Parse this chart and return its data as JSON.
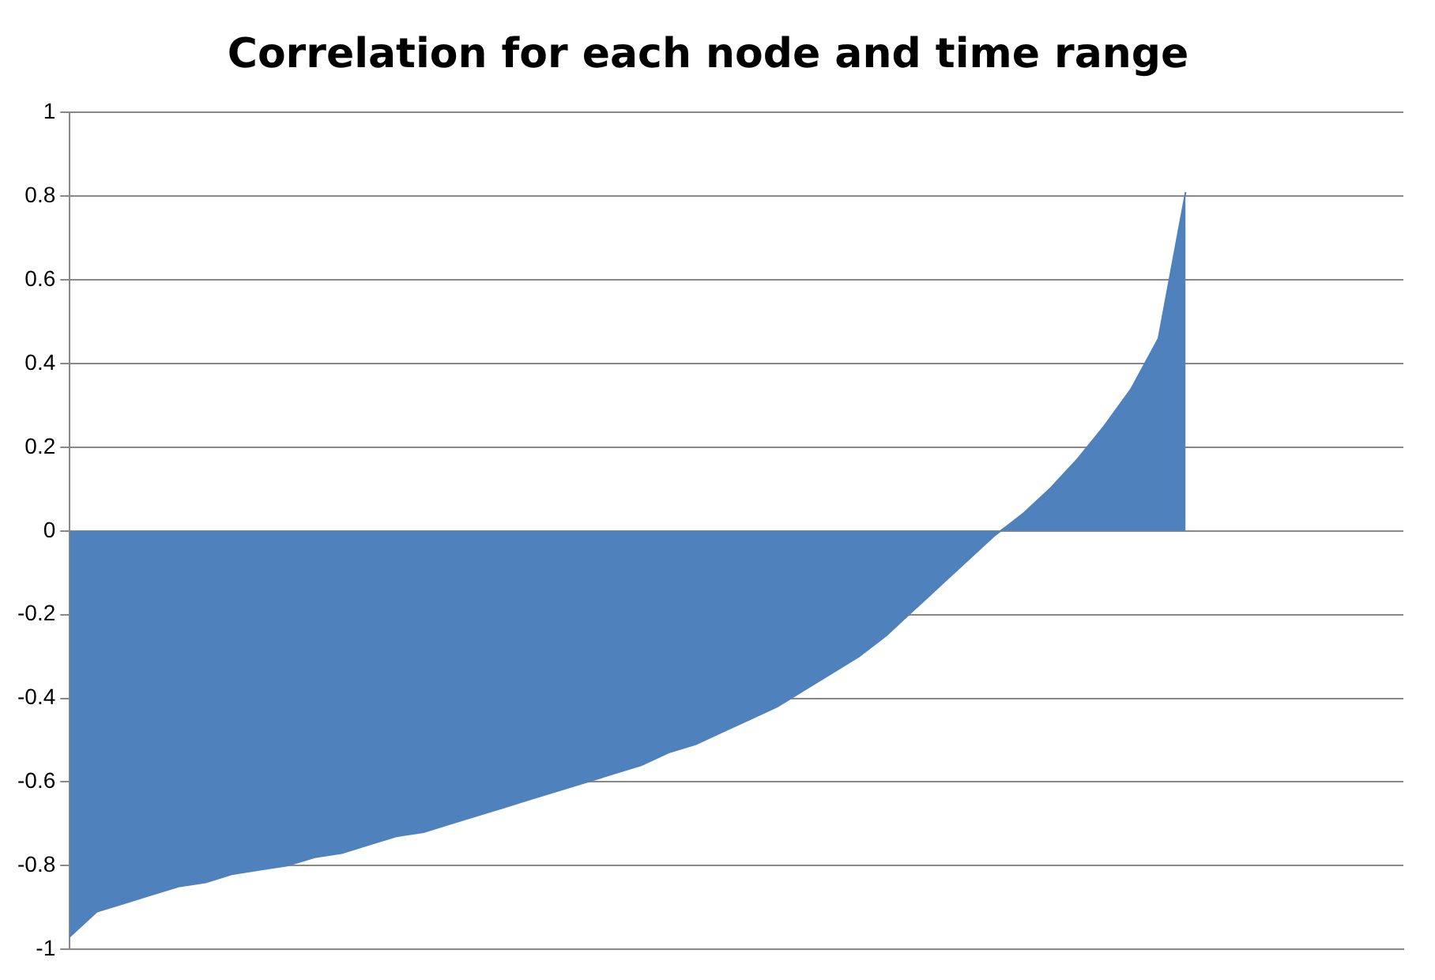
{
  "chart_data": {
    "type": "area",
    "title": "Correlation for each node and time range",
    "categories": [
      null,
      null,
      null,
      null,
      null,
      null,
      null,
      null,
      null,
      null,
      null,
      null,
      null,
      null,
      null,
      null,
      null,
      null,
      null,
      null,
      null,
      null,
      null,
      null,
      null,
      null,
      null,
      null,
      null,
      null,
      null,
      null,
      null,
      null,
      null,
      null,
      null,
      null,
      null,
      null,
      null,
      null,
      null,
      null,
      null,
      null,
      null,
      null,
      null,
      null
    ],
    "series": [
      {
        "color": "#4f81bd",
        "values": [
          -0.97,
          -0.91,
          -0.89,
          -0.87,
          -0.85,
          -0.84,
          -0.82,
          -0.81,
          -0.8,
          -0.78,
          -0.77,
          -0.75,
          -0.73,
          -0.72,
          -0.7,
          -0.68,
          -0.66,
          -0.64,
          -0.62,
          -0.6,
          -0.58,
          -0.56,
          -0.53,
          -0.51,
          -0.48,
          -0.45,
          -0.42,
          -0.38,
          -0.34,
          -0.3,
          -0.25,
          -0.19,
          -0.13,
          -0.07,
          -0.01,
          0.04,
          0.1,
          0.17,
          0.25,
          0.34,
          0.46,
          0.81,
          null,
          null,
          null,
          null,
          null,
          null,
          null,
          null
        ]
      }
    ],
    "ylim": [
      -1,
      1
    ],
    "yticks": [
      -1,
      -0.8,
      -0.6,
      -0.4,
      -0.2,
      0,
      0.2,
      0.4,
      0.6,
      0.8,
      1
    ],
    "grid": "y",
    "legend": false
  }
}
